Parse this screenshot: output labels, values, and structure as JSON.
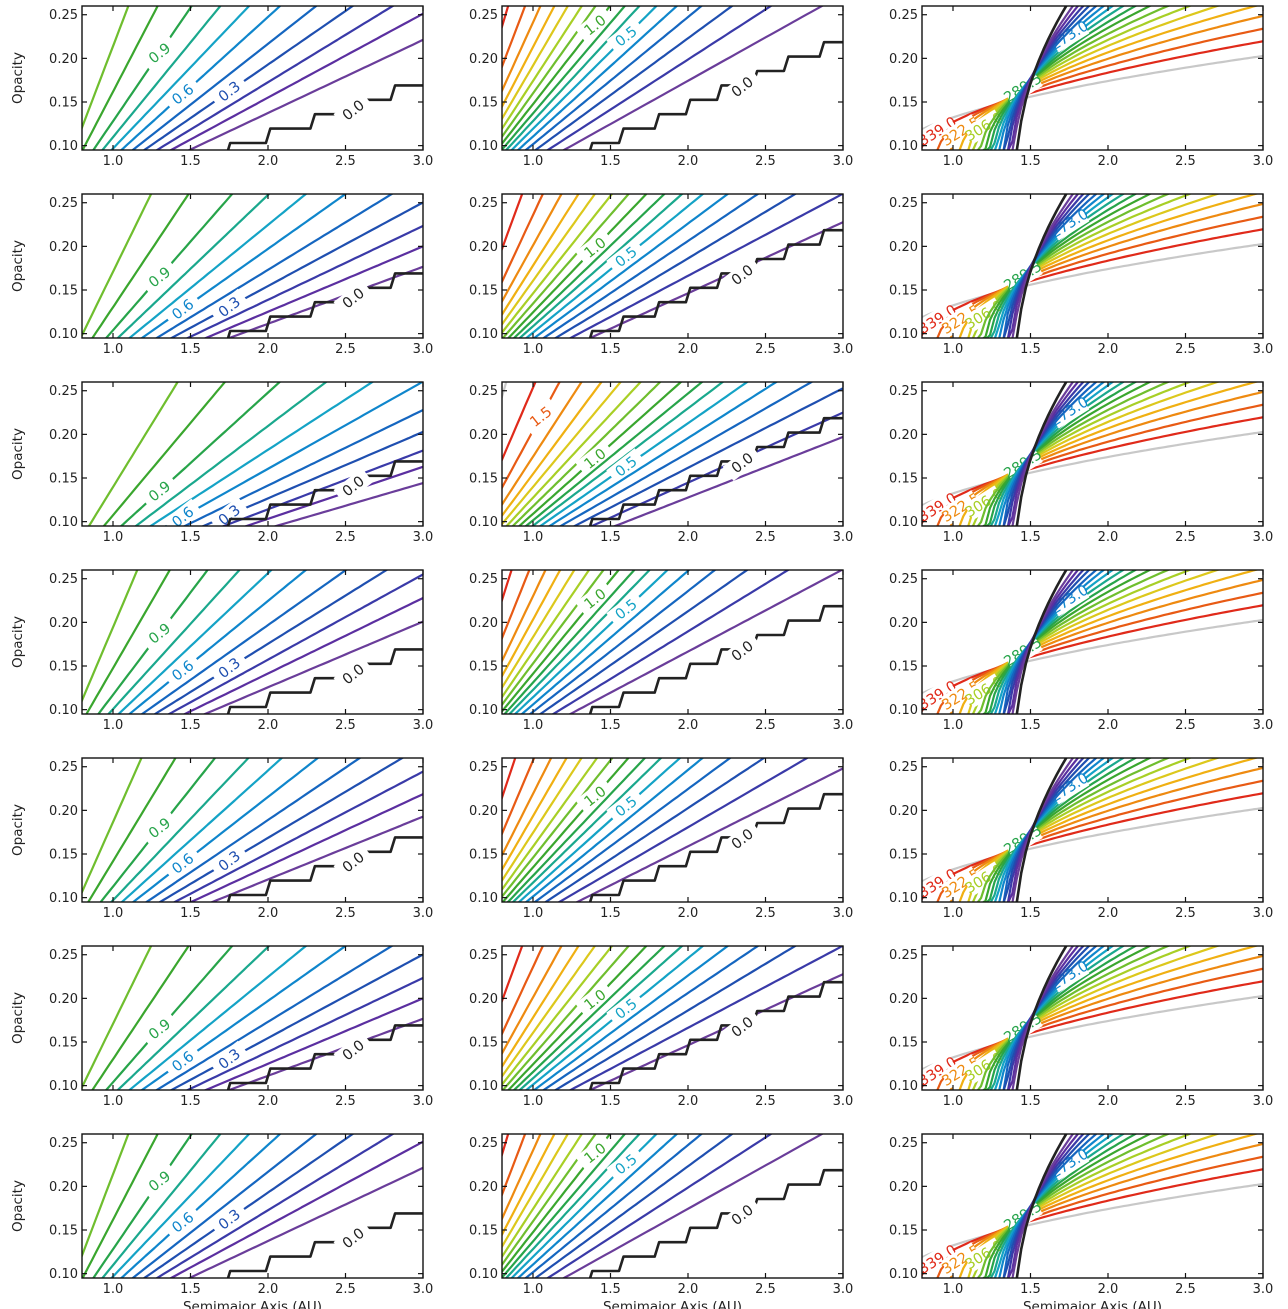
{
  "figure": {
    "ylabel": "Opacity",
    "xlabel": "Semimajor Axis (AU)",
    "xlim": [
      0.8,
      3.0
    ],
    "ylim": [
      0.095,
      0.26
    ],
    "xticks": [
      "1.0",
      "1.5",
      "2.0",
      "2.5",
      "3.0"
    ],
    "yticks": [
      "0.10",
      "0.15",
      "0.20",
      "0.25"
    ],
    "grid": false,
    "legend": "none"
  },
  "colors": {
    "c0": "#222222",
    "c1": "#6a3d9a",
    "c2": "#5b2fa0",
    "c3": "#3a3aa8",
    "c4": "#1f4fb0",
    "c5": "#1566c0",
    "c6": "#0f86cc",
    "c7": "#14a3c6",
    "c8": "#1aa88d",
    "c9": "#27a44a",
    "c10": "#3aa62e",
    "c11": "#6fbe2e",
    "c12": "#a8cf26",
    "c13": "#dcc81c",
    "c14": "#f0b012",
    "c15": "#ee8a10",
    "c16": "#e85a14",
    "c17": "#e02a1a",
    "c18": "#c8c8c8"
  },
  "chart_data": [
    {
      "type": "line",
      "panel": "row1-col1",
      "levels": [
        0.0,
        0.3,
        0.6,
        0.9
      ],
      "labels": [
        "0.9",
        "0.6",
        "0.3",
        "0.0"
      ]
    },
    {
      "type": "line",
      "panel": "row1-col2",
      "levels": [
        0.0,
        0.5,
        1.0,
        1.5
      ],
      "labels": [
        "1.5",
        "0.0"
      ]
    },
    {
      "type": "line",
      "panel": "row1-col3",
      "levels": [
        240.0,
        256.5,
        273.0,
        289.5,
        306.0,
        322.5,
        339.0
      ],
      "labels": [
        "339.0",
        "322.5",
        "306.0",
        "289.5",
        "273.0",
        "256.5",
        "240.0"
      ]
    },
    {
      "type": "line",
      "panel": "row2-col1",
      "levels": [
        0.0,
        0.3,
        0.6,
        0.9
      ],
      "labels": [
        "0.9",
        "0.6",
        "0.3",
        "0.0"
      ]
    },
    {
      "type": "line",
      "panel": "row2-col2",
      "levels": [
        0.0,
        0.5,
        1.0,
        1.5
      ],
      "labels": [
        "1.5",
        "1.0",
        "0.5",
        "0.0"
      ]
    },
    {
      "type": "line",
      "panel": "row2-col3",
      "levels": [
        240.0,
        256.5,
        273.0,
        289.5,
        306.0,
        322.5,
        339.0
      ],
      "labels": [
        "339.0",
        "322.5",
        "306.0",
        "289.5",
        "273.0",
        "256.5",
        "240.0"
      ]
    },
    {
      "type": "line",
      "panel": "row3-col1",
      "levels": [
        0.0,
        0.3,
        0.6
      ],
      "labels": [
        "0.6",
        "0.3",
        "0.0"
      ]
    },
    {
      "type": "line",
      "panel": "row3-col2",
      "levels": [
        0.0,
        0.5,
        1.0
      ],
      "labels": [
        "1.0",
        "0.5",
        "0.0"
      ]
    },
    {
      "type": "line",
      "panel": "row3-col3",
      "levels": [
        240.0,
        256.5,
        273.0,
        289.5,
        306.0,
        322.5,
        339.0
      ],
      "labels": [
        "339.0",
        "322.5",
        "306.0",
        "289.5",
        "273.0",
        "256.5",
        "240.0"
      ]
    },
    {
      "type": "line",
      "panel": "row4-col1",
      "levels": [
        0.0,
        0.3,
        0.6,
        0.9
      ],
      "labels": [
        "0.9",
        "0.9",
        "0.6",
        "0.3",
        "0.0"
      ]
    },
    {
      "type": "line",
      "panel": "row4-col2",
      "levels": [
        0.0,
        0.5,
        1.0,
        1.5
      ],
      "labels": [
        "1.5",
        "1.0",
        "0.5",
        "0.0"
      ]
    },
    {
      "type": "line",
      "panel": "row4-col3",
      "levels": [
        240.0,
        256.5,
        273.0,
        289.5,
        306.0,
        322.5,
        339.0
      ],
      "labels": [
        "339.0",
        "322.5",
        "306.0",
        "289.5",
        "273.0",
        "256.5",
        "240.0"
      ]
    },
    {
      "type": "line",
      "panel": "row5-col1",
      "levels": [
        0.0,
        0.3,
        0.6,
        0.9
      ],
      "labels": [
        "0.9",
        "0.9",
        "0.6",
        "0.3",
        "0.0"
      ]
    },
    {
      "type": "line",
      "panel": "row5-col2",
      "levels": [
        0.0,
        0.5,
        1.0,
        1.5
      ],
      "labels": [
        "1.5",
        "1.0",
        "0.5",
        "0.0"
      ]
    },
    {
      "type": "line",
      "panel": "row5-col3",
      "levels": [
        240.0,
        256.5,
        273.0,
        289.5,
        306.0,
        322.5,
        339.0
      ],
      "labels": [
        "339.0",
        "322.5",
        "306.0",
        "289.5",
        "273.0",
        "256.5",
        "240.0"
      ]
    },
    {
      "type": "line",
      "panel": "row6-col1",
      "levels": [
        0.0,
        0.3,
        0.6,
        0.9
      ],
      "labels": [
        "0.9",
        "0.6",
        "0.3",
        "0.0"
      ]
    },
    {
      "type": "line",
      "panel": "row6-col2",
      "levels": [
        0.0,
        0.5,
        1.0,
        1.5
      ],
      "labels": [
        "1.5",
        "1.0",
        "0.5",
        "0.0"
      ]
    },
    {
      "type": "line",
      "panel": "row6-col3",
      "levels": [
        240.0,
        256.5,
        273.0,
        289.5,
        306.0,
        322.5,
        339.0
      ],
      "labels": [
        "339.0",
        "322.5",
        "306.0",
        "289.5",
        "273.0",
        "256.5",
        "240.0"
      ]
    },
    {
      "type": "line",
      "panel": "row7-col1",
      "levels": [
        0.0,
        0.3,
        0.6,
        0.9
      ],
      "labels": [
        "0.9",
        "0.9",
        "0.6",
        "0.3",
        "0.0"
      ]
    },
    {
      "type": "line",
      "panel": "row7-col2",
      "levels": [
        0.0,
        0.5,
        1.0,
        1.5
      ],
      "labels": [
        "1.5",
        "1.0",
        "0.0"
      ]
    },
    {
      "type": "line",
      "panel": "row7-col3",
      "levels": [
        240.0,
        256.5,
        273.0,
        289.5,
        306.0,
        322.5,
        339.0
      ],
      "labels": [
        "339.0",
        "322.5",
        "306.0",
        "289.5",
        "273.0",
        "256.5",
        "240.0"
      ]
    }
  ]
}
